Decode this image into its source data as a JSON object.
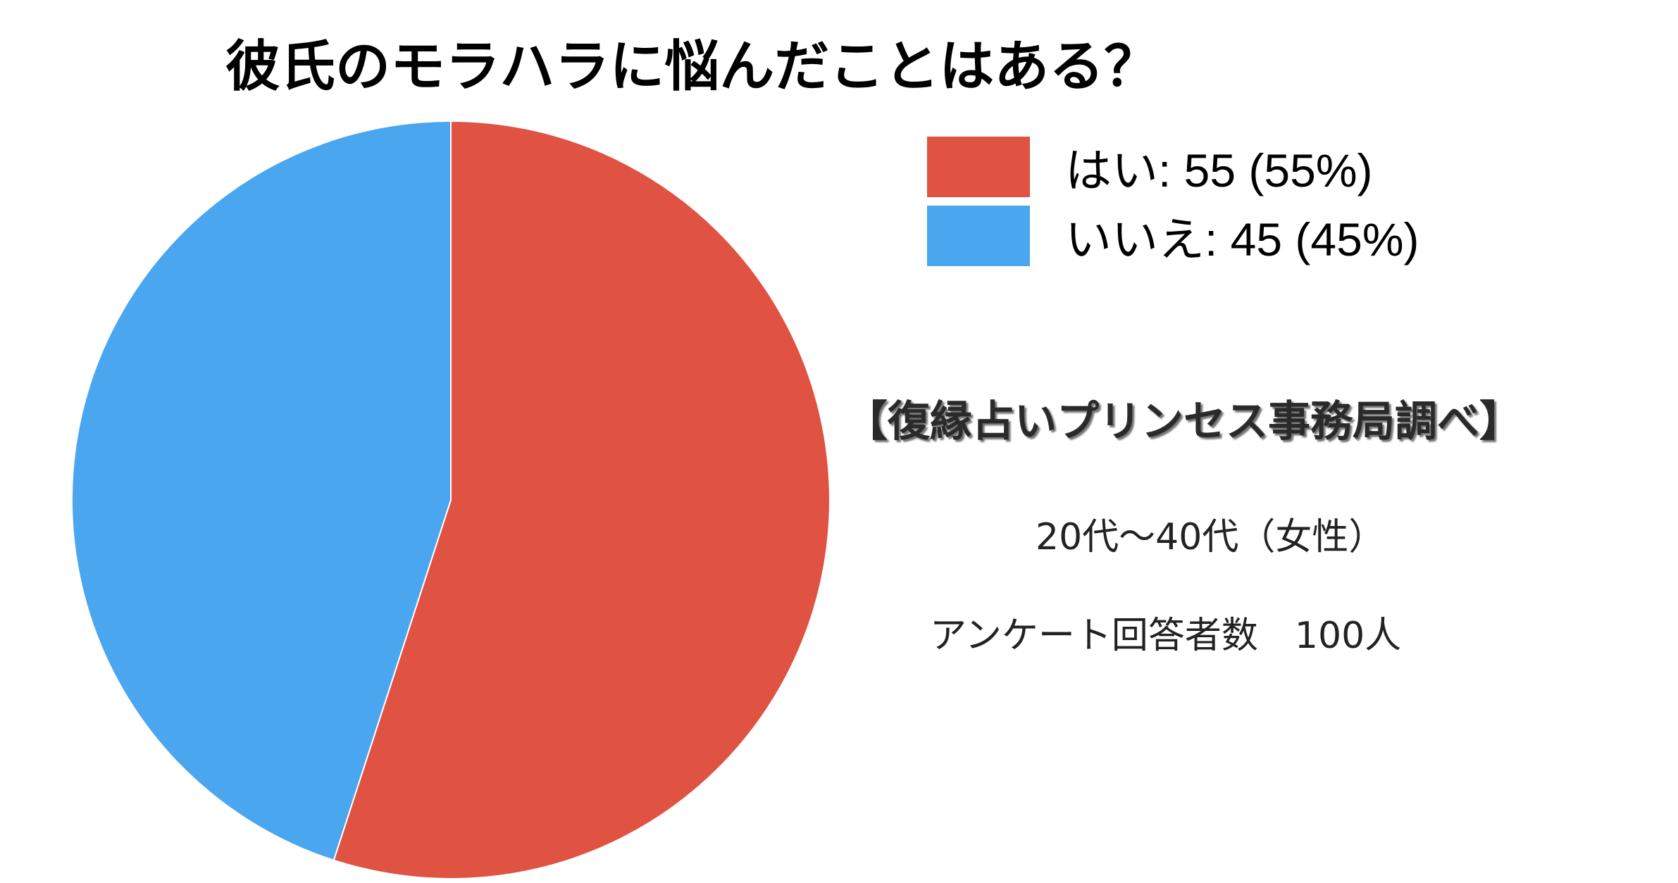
{
  "chart_data": {
    "type": "pie",
    "title": "彼氏のモラハラに悩んだことはある？",
    "categories": [
      "はい",
      "いいえ"
    ],
    "values": [
      55,
      45
    ],
    "percentages": [
      55,
      45
    ],
    "legend_labels": [
      "はい: 55 (55%)",
      "いいえ: 45 (45%)"
    ],
    "colors": [
      "#e05241",
      "#4aa6ee"
    ],
    "legend": "right"
  },
  "notes": {
    "source": "【復縁占いプリンセス事務局調べ】",
    "age": "20代〜40代（女性）",
    "respondents": "アンケート回答者数　100人"
  }
}
